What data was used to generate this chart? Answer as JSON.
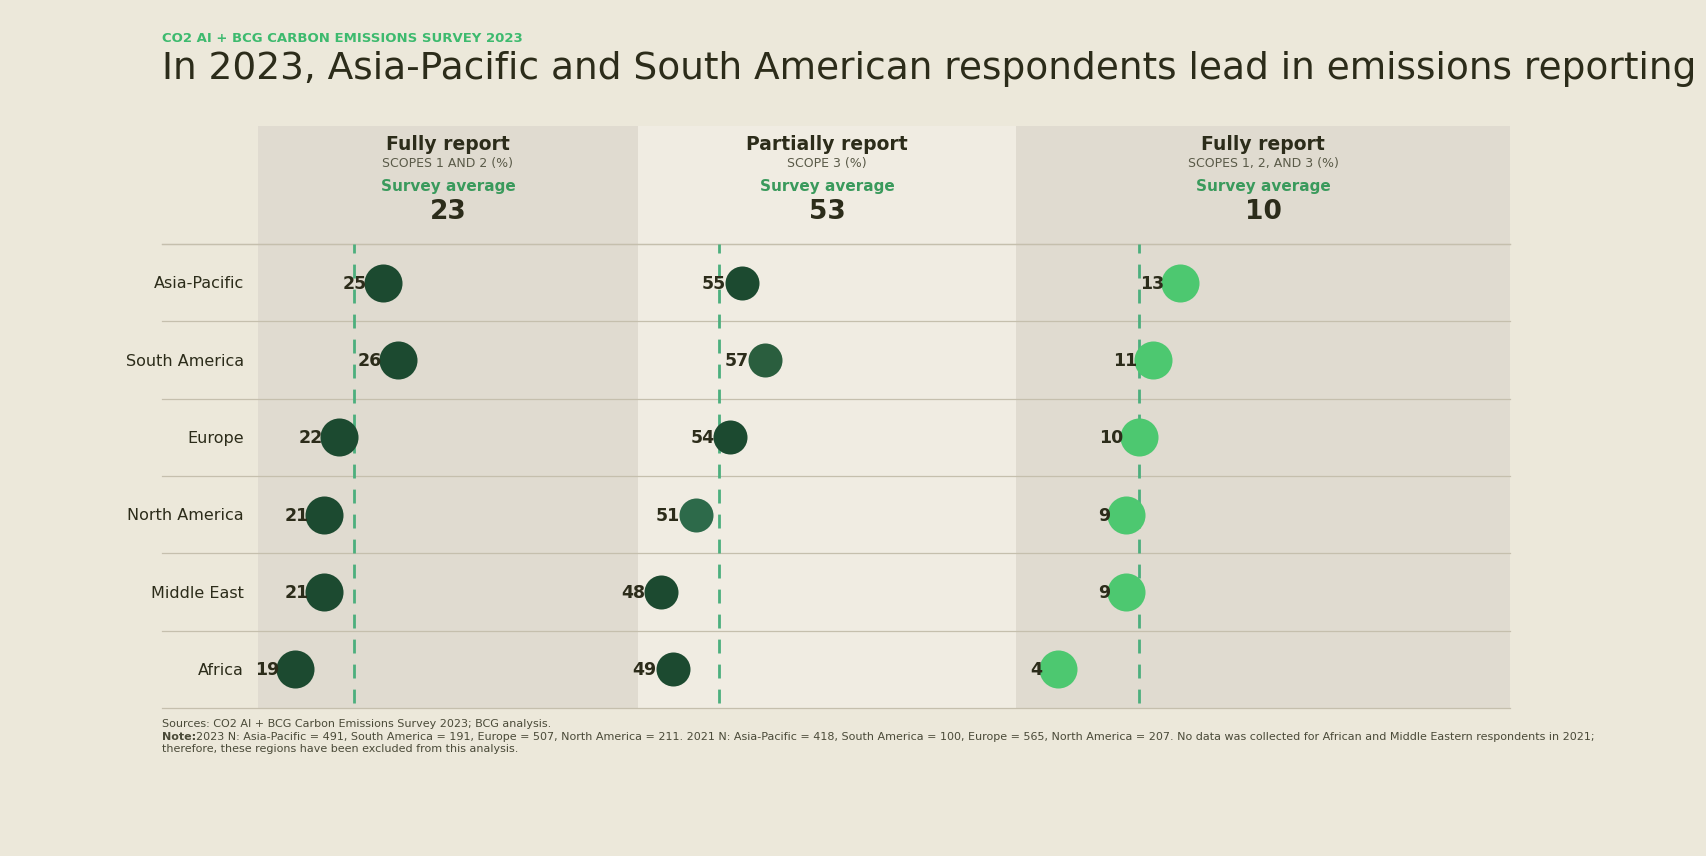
{
  "title_label": "CO2 AI + BCG CARBON EMISSIONS SURVEY 2023",
  "title": "In 2023, Asia-Pacific and South American respondents lead in emissions reporting",
  "background_color": "#ece8da",
  "panel_bg1_color": "#e0dbd0",
  "panel_bg2_color": "#f0ece2",
  "panel_bg3_color": "#e0dbd0",
  "regions": [
    "Asia-Pacific",
    "South America",
    "Europe",
    "North America",
    "Middle East",
    "Africa"
  ],
  "col1_label": "Fully report",
  "col1_sublabel": "SCOPES 1 AND 2 (%)",
  "col1_avg_label": "Survey average",
  "col1_avg": 23,
  "col1_values": [
    25,
    26,
    22,
    21,
    21,
    19
  ],
  "col2_label": "Partially report",
  "col2_sublabel": "SCOPE 3 (%)",
  "col2_avg_label": "Survey average",
  "col2_avg": 53,
  "col2_values": [
    55,
    57,
    54,
    51,
    48,
    49
  ],
  "col3_label": "Fully report",
  "col3_sublabel": "SCOPES 1, 2, AND 3 (%)",
  "col3_avg_label": "Survey average",
  "col3_avg": 10,
  "col3_values": [
    13,
    11,
    10,
    9,
    9,
    4
  ],
  "col1_dot_colors": [
    "#1c4a30",
    "#1c4a30",
    "#1c4a30",
    "#1c4a30",
    "#1c4a30",
    "#1c4a30"
  ],
  "col2_dot_colors": [
    "#1c4a30",
    "#2a5e3e",
    "#1c4a30",
    "#2d6a4a",
    "#1c4a30",
    "#1c4a30"
  ],
  "col3_dot_colors": [
    "#4dc870",
    "#4dc870",
    "#4dc870",
    "#4dc870",
    "#4dc870",
    "#4dc870"
  ],
  "avg_line_color": "#4caf7d",
  "text_green": "#3a9a5c",
  "title_green": "#3dba6e",
  "sources_text": "Sources: CO2 AI + BCG Carbon Emissions Survey 2023; BCG analysis.",
  "note_text": "Note: 2023 N: Asia-Pacific = 491, South America = 191, Europe = 507, North America = 211. 2021 N: Asia-Pacific = 418, South America = 100, Europe = 565, North America = 207. No data was collected for African and Middle Eastern respondents in 2021;\ntherefore, these regions have been excluded from this analysis."
}
